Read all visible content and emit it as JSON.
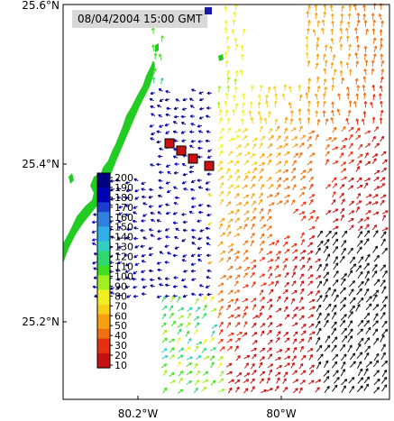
{
  "timestamp": "08/04/2004 15:00 GMT",
  "lat_labels": [
    "25.6°N",
    "25.4°N",
    "25.2°N"
  ],
  "lon_labels": [
    "80.2°W",
    "80°W"
  ],
  "colorbar": {
    "ticks": [
      "200",
      "190",
      "180",
      "170",
      "160",
      "150",
      "140",
      "130",
      "120",
      "110",
      "100",
      "90",
      "80",
      "70",
      "60",
      "50",
      "40",
      "30",
      "20",
      "10"
    ],
    "stops": [
      "#000080",
      "#0000b4",
      "#1a3fd0",
      "#2f80e0",
      "#2fb0e8",
      "#30d0c0",
      "#30d870",
      "#40e020",
      "#a0f020",
      "#f0f020",
      "#f8d018",
      "#f8a010",
      "#f07010",
      "#e83010",
      "#c81010"
    ]
  },
  "colors": {
    "land": "#22cc22",
    "frame": "#000000",
    "station": "#cc1111",
    "station_edge": "#000000",
    "marker": "#1a1aaa"
  },
  "legend_count": 0
}
